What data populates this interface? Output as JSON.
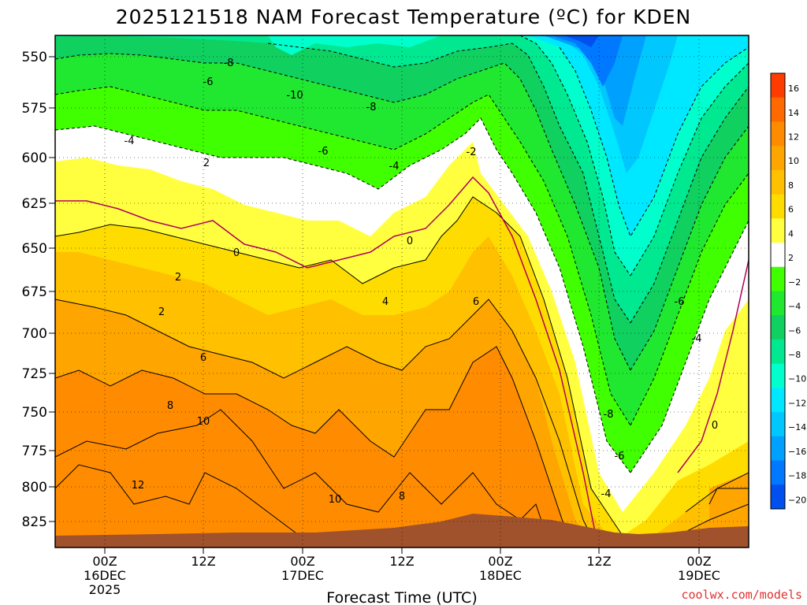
{
  "title": "2025121518 NAM Forecast Temperature (ºC) for KDEN",
  "credit": "coolwx.com/models",
  "chart_data": {
    "type": "contour",
    "title": "2025121518 NAM Forecast Temperature (ºC) for KDEN",
    "xlabel": "Forecast Time (UTC)",
    "ylabel": "",
    "y_ticks": [
      "550",
      "575",
      "600",
      "625",
      "650",
      "675",
      "700",
      "725",
      "750",
      "775",
      "800",
      "825"
    ],
    "x_ticks": [
      {
        "lines": [
          "00Z",
          "16DEC",
          "2025"
        ]
      },
      {
        "lines": [
          "12Z"
        ]
      },
      {
        "lines": [
          "00Z",
          "17DEC"
        ]
      },
      {
        "lines": [
          "12Z"
        ]
      },
      {
        "lines": [
          "00Z",
          "18DEC"
        ]
      },
      {
        "lines": [
          "12Z"
        ]
      },
      {
        "lines": [
          "00Z",
          "19DEC"
        ]
      }
    ],
    "colorbar": {
      "labels": [
        "16",
        "14",
        "12",
        "10",
        "8",
        "6",
        "4",
        "2",
        "−2",
        "−4",
        "−6",
        "−8",
        "−10",
        "−12",
        "−14",
        "−16",
        "−18",
        "−20"
      ],
      "colors": [
        "#ff3c00",
        "#ff6a00",
        "#ff8c00",
        "#ffa500",
        "#ffc000",
        "#ffdc00",
        "#ffff40",
        "#ffffff",
        "#40ff00",
        "#20e830",
        "#10d060",
        "#00e890",
        "#00ffcc",
        "#00e8ff",
        "#00c8ff",
        "#00a0ff",
        "#0078ff",
        "#0050f0"
      ]
    },
    "contour_labels": [
      "-8",
      "-6",
      "-10",
      "-8",
      "-4",
      "-6",
      "-2",
      "-4",
      "2",
      "0",
      "0",
      "2",
      "4",
      "2",
      "6",
      "6",
      "-6",
      "-4",
      "8",
      "-8",
      "10",
      "-6",
      "10",
      "0",
      "-4",
      "8",
      "12"
    ],
    "grid": true,
    "legend": "colorbar-right"
  }
}
